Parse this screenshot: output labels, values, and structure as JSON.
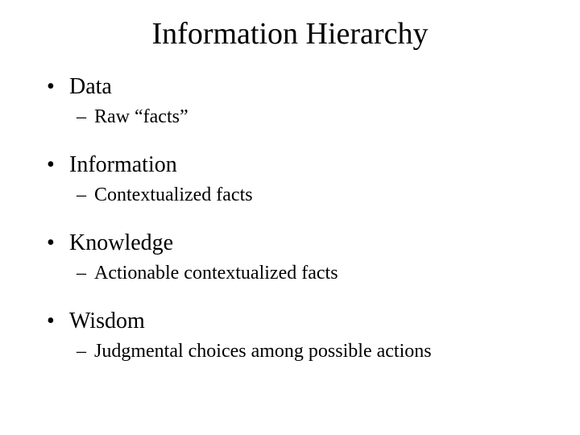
{
  "title": "Information Hierarchy",
  "items": [
    {
      "label": "Data",
      "sub": "Raw “facts”"
    },
    {
      "label": "Information",
      "sub": "Contextualized facts"
    },
    {
      "label": "Knowledge",
      "sub": "Actionable contextualized facts"
    },
    {
      "label": "Wisdom",
      "sub": "Judgmental choices among possible actions"
    }
  ],
  "colors": {
    "background": "#ffffff",
    "text": "#000000"
  },
  "typography": {
    "font_family": "Times New Roman",
    "title_fontsize": 38,
    "level1_fontsize": 28,
    "level2_fontsize": 24
  }
}
